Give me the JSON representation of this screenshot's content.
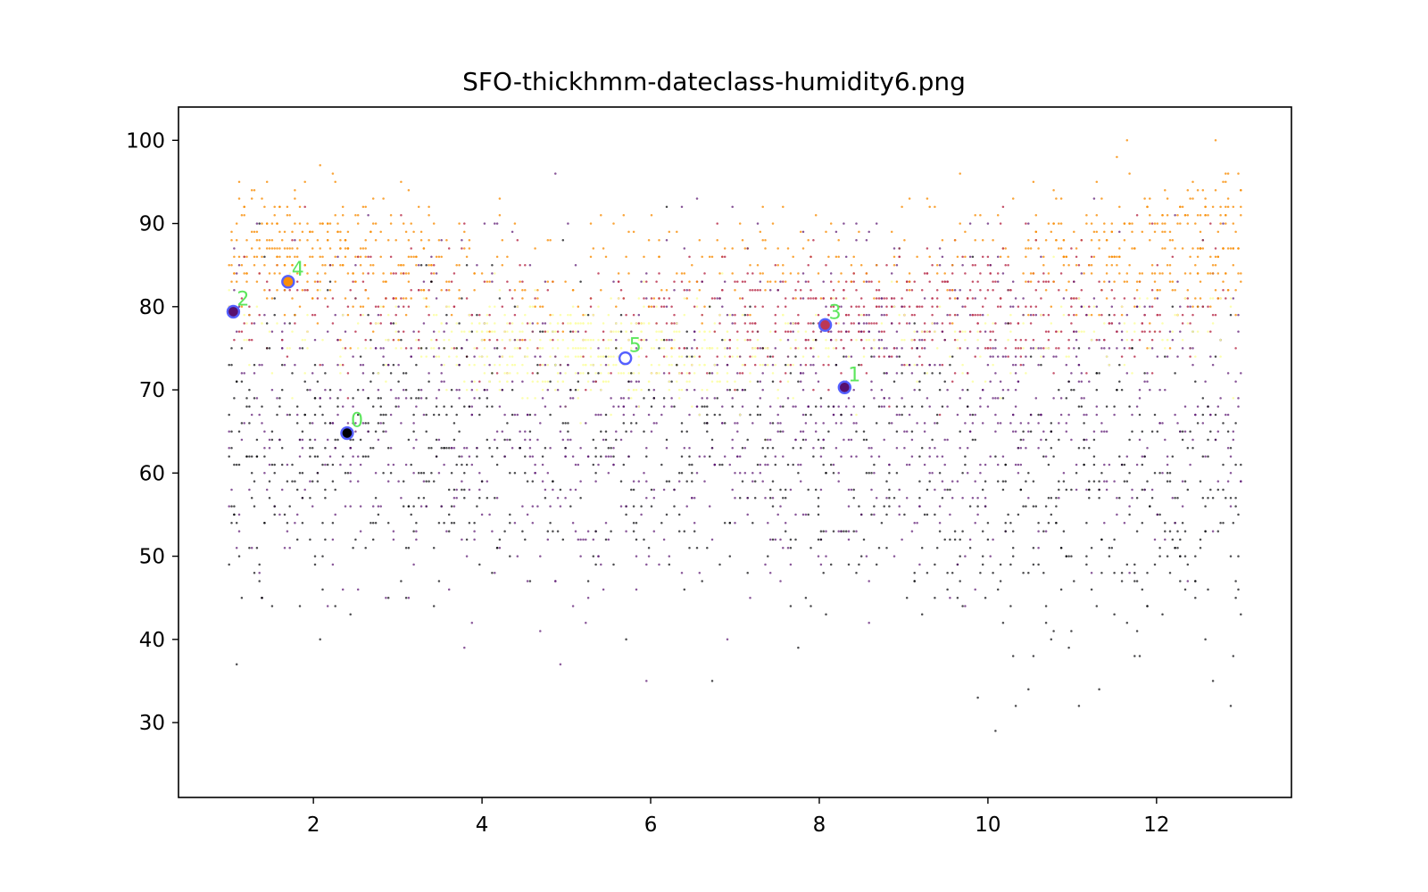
{
  "chart_data": {
    "type": "scatter",
    "title": "SFO-thickhmm-dateclass-humidity6.png",
    "xlabel": "",
    "ylabel": "",
    "xlim": [
      0.4,
      13.6
    ],
    "ylim": [
      21,
      104
    ],
    "x_ticks": [
      2,
      4,
      6,
      8,
      10,
      12
    ],
    "y_ticks": [
      30,
      40,
      50,
      60,
      70,
      80,
      90,
      100
    ],
    "grid": false,
    "legend": "none",
    "x_step": 0.03,
    "y_step": 1,
    "class_colors": [
      "#000004",
      "#57106e",
      "#bc3754",
      "#f98e09",
      "#fcffa4"
    ],
    "class_profiles": [
      {
        "class": 0,
        "mean": [
          [
            1,
            62
          ],
          [
            3,
            63
          ],
          [
            5,
            64
          ],
          [
            7,
            62
          ],
          [
            9,
            58
          ],
          [
            11,
            56
          ],
          [
            13,
            56
          ]
        ],
        "sd": 9
      },
      {
        "class": 1,
        "mean": [
          [
            1,
            66
          ],
          [
            3,
            67
          ],
          [
            5,
            64
          ],
          [
            7,
            65
          ],
          [
            9,
            68
          ],
          [
            11,
            68
          ],
          [
            13,
            68
          ]
        ],
        "sd": 10
      },
      {
        "class": 2,
        "mean": [
          [
            1,
            80
          ],
          [
            3,
            80
          ],
          [
            5,
            78
          ],
          [
            7,
            78
          ],
          [
            9,
            79
          ],
          [
            11,
            80
          ],
          [
            13,
            80
          ]
        ],
        "sd": 4
      },
      {
        "class": 3,
        "mean": [
          [
            1,
            88
          ],
          [
            3,
            86
          ],
          [
            5,
            84
          ],
          [
            7,
            85
          ],
          [
            9,
            86
          ],
          [
            11,
            87
          ],
          [
            13,
            88
          ]
        ],
        "sd": 4
      },
      {
        "class": 4,
        "mean": [
          [
            1,
            76
          ],
          [
            3,
            76
          ],
          [
            5,
            75
          ],
          [
            7,
            74
          ],
          [
            9,
            76
          ],
          [
            11,
            77
          ],
          [
            13,
            77
          ]
        ],
        "sd": 3
      }
    ],
    "centroids": [
      {
        "label": "0",
        "x": 2.4,
        "y": 64.8,
        "fill": "#000004"
      },
      {
        "label": "1",
        "x": 8.3,
        "y": 70.3,
        "fill": "#57106e"
      },
      {
        "label": "2",
        "x": 1.05,
        "y": 79.4,
        "fill": "#57106e"
      },
      {
        "label": "3",
        "x": 8.07,
        "y": 77.8,
        "fill": "#bc3754"
      },
      {
        "label": "4",
        "x": 1.7,
        "y": 83.0,
        "fill": "#f98e09"
      },
      {
        "label": "5",
        "x": 5.7,
        "y": 73.8,
        "fill": "#ffffff"
      }
    ],
    "centroid_ring_color": "#5560ff",
    "centroid_label_color": "#5ce65c"
  }
}
